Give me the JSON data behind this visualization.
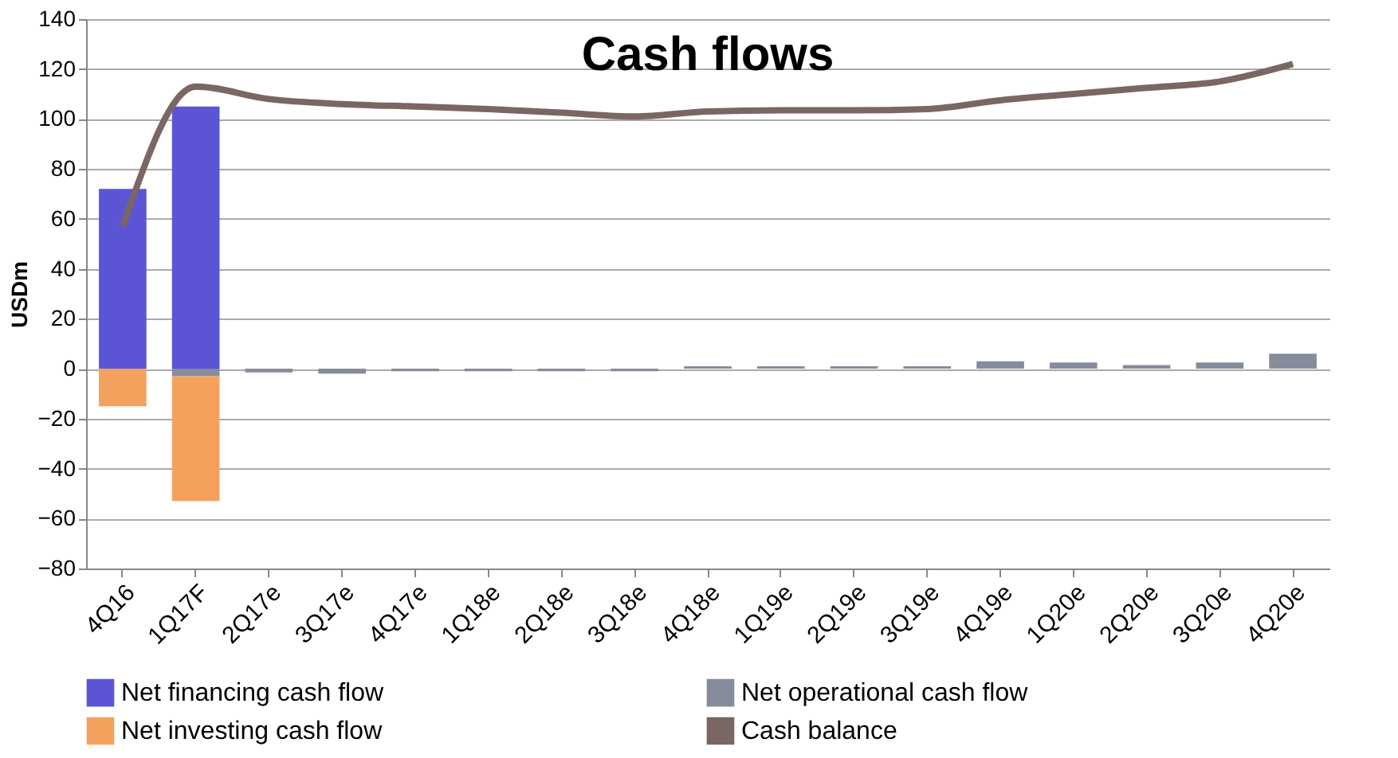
{
  "chart_data": {
    "type": "bar",
    "title": "Cash flows",
    "ylabel": "USDm",
    "categories": [
      "4Q16",
      "1Q17F",
      "2Q17e",
      "3Q17e",
      "4Q17e",
      "1Q18e",
      "2Q18e",
      "3Q18e",
      "4Q18e",
      "1Q19e",
      "2Q19e",
      "3Q19e",
      "4Q19e",
      "1Q20e",
      "2Q20e",
      "3Q20e",
      "4Q20e"
    ],
    "stacked": true,
    "series": [
      {
        "name": "Net financing cash flow",
        "color": "#5b55d6",
        "values": [
          72,
          105,
          null,
          null,
          null,
          null,
          null,
          null,
          null,
          null,
          null,
          null,
          null,
          null,
          null,
          null,
          null
        ]
      },
      {
        "name": "Net operational cash flow",
        "color": "#868c9c",
        "values": [
          null,
          -3,
          -1.5,
          -2,
          -1,
          -1,
          -1,
          -1,
          1,
          1,
          1,
          1,
          3,
          2.5,
          1.5,
          2.5,
          6
        ]
      },
      {
        "name": "Net investing cash flow",
        "color": "#f4a15e",
        "values": [
          -15,
          -50,
          null,
          null,
          null,
          null,
          null,
          null,
          null,
          null,
          null,
          null,
          null,
          null,
          null,
          null,
          null
        ]
      },
      {
        "name": "Cash balance",
        "type": "line",
        "color": "#7a6663",
        "values": [
          57,
          113,
          108,
          106,
          105,
          104,
          102.5,
          101,
          103,
          103.5,
          103.5,
          104,
          107.5,
          110,
          112.5,
          115,
          122
        ]
      }
    ],
    "ylim": [
      -80,
      140
    ],
    "yticks": [
      -80,
      -60,
      -40,
      -20,
      0,
      20,
      40,
      60,
      80,
      100,
      120,
      140
    ],
    "grid": "y",
    "legend": "bottom"
  }
}
